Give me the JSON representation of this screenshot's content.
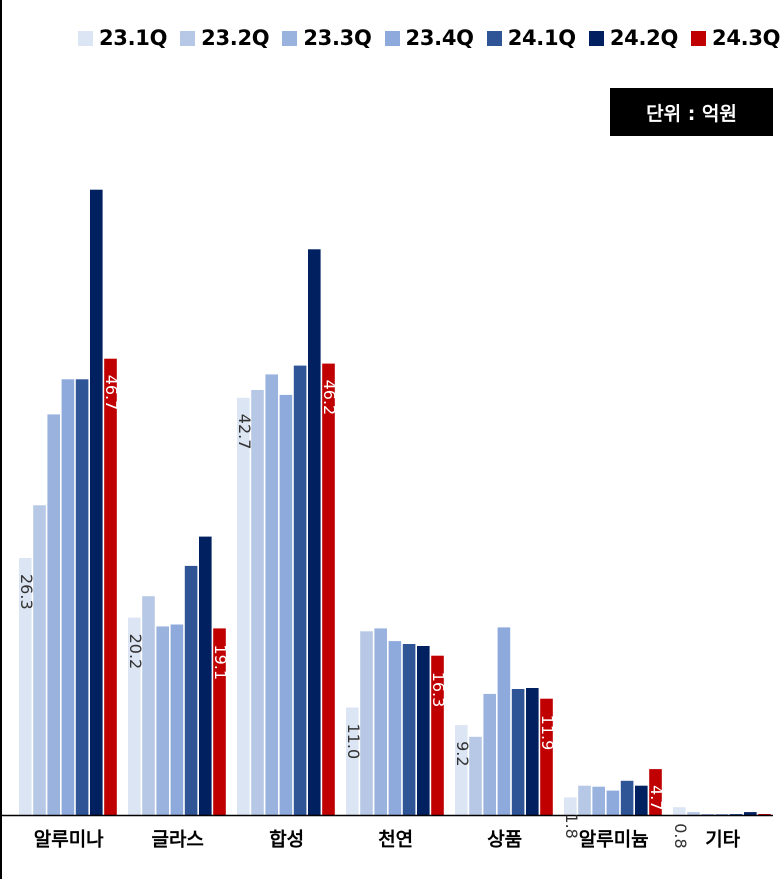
{
  "unit_label": "단위 : 억원",
  "chart_data": {
    "type": "bar",
    "categories": [
      "알루미나",
      "글라스",
      "합성",
      "천연",
      "상품",
      "알루미늄",
      "기타"
    ],
    "series": [
      {
        "name": "23.1Q",
        "color": "#DCE5F4",
        "values": [
          26.3,
          20.2,
          42.7,
          11.0,
          9.2,
          1.8,
          0.8
        ]
      },
      {
        "name": "23.2Q",
        "color": "#B7C8E6",
        "values": [
          31.7,
          22.4,
          43.5,
          18.8,
          8.0,
          3.0,
          0.3
        ]
      },
      {
        "name": "23.3Q",
        "color": "#9AB3DE",
        "values": [
          41.0,
          19.3,
          45.1,
          19.1,
          12.4,
          2.9,
          0.1
        ]
      },
      {
        "name": "23.4Q",
        "color": "#8EA9DB",
        "values": [
          44.6,
          19.5,
          43.0,
          17.8,
          19.2,
          2.5,
          0.1
        ]
      },
      {
        "name": "24.1Q",
        "color": "#2F5597",
        "values": [
          44.6,
          25.5,
          46.0,
          17.5,
          12.9,
          3.5,
          0.1
        ]
      },
      {
        "name": "24.2Q",
        "color": "#002060",
        "values": [
          64.0,
          28.5,
          57.9,
          17.3,
          13.0,
          3.0,
          0.3
        ]
      },
      {
        "name": "24.3Q",
        "color": "#C00000",
        "values": [
          46.7,
          19.1,
          46.2,
          16.3,
          11.9,
          4.7,
          0.1
        ]
      }
    ],
    "data_labels": [
      {
        "series": "23.1Q",
        "category": "알루미나",
        "value": "26.3"
      },
      {
        "series": "24.3Q",
        "category": "알루미나",
        "value": "46.7"
      },
      {
        "series": "23.1Q",
        "category": "글라스",
        "value": "20.2"
      },
      {
        "series": "24.3Q",
        "category": "글라스",
        "value": "19.1"
      },
      {
        "series": "23.1Q",
        "category": "합성",
        "value": "42.7"
      },
      {
        "series": "24.3Q",
        "category": "합성",
        "value": "46.2"
      },
      {
        "series": "23.1Q",
        "category": "천연",
        "value": "11.0"
      },
      {
        "series": "24.3Q",
        "category": "천연",
        "value": "16.3"
      },
      {
        "series": "23.1Q",
        "category": "상품",
        "value": "9.2"
      },
      {
        "series": "24.3Q",
        "category": "상품",
        "value": "11.9"
      },
      {
        "series": "23.1Q",
        "category": "알루미늄",
        "value": "1.8"
      },
      {
        "series": "24.3Q",
        "category": "알루미늄",
        "value": "4.7"
      },
      {
        "series": "23.1Q",
        "category": "기타",
        "value": "0.8"
      }
    ],
    "title": "",
    "xlabel": "",
    "ylabel": "",
    "ylim": [
      0,
      70
    ],
    "grid": false,
    "legend_position": "top"
  }
}
